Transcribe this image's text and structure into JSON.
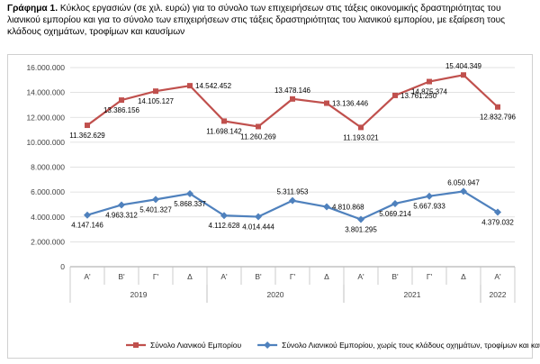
{
  "caption": {
    "label": "Γράφημα 1.",
    "text": "Κύκλος εργασιών (σε χιλ. ευρώ) για το σύνολο των επιχειρήσεων στις τάξεις οικονομικής δραστηριότητας του λιανικού εμπορίου και για το σύνολο των επιχειρήσεων στις τάξεις δραστηριότητας του λιανικού εμπορίου, με εξαίρεση τους κλάδους οχημάτων, τροφίμων και καυσίμων"
  },
  "chart_data": {
    "type": "line",
    "categories": [
      "Α'",
      "Β'",
      "Γ'",
      "Δ",
      "Α'",
      "Β'",
      "Γ'",
      "Δ",
      "Α'",
      "Β'",
      "Γ'",
      "Δ",
      "Α'"
    ],
    "years": [
      {
        "label": "2019",
        "start": 0,
        "end": 3
      },
      {
        "label": "2020",
        "start": 4,
        "end": 7
      },
      {
        "label": "2021",
        "start": 8,
        "end": 11
      },
      {
        "label": "2022",
        "start": 12,
        "end": 12
      }
    ],
    "ylim": [
      0,
      16000000
    ],
    "yticks": [
      0,
      2000000,
      4000000,
      6000000,
      8000000,
      10000000,
      12000000,
      14000000,
      16000000
    ],
    "ytick_labels": [
      "0",
      "2.000.000",
      "4.000.000",
      "6.000.000",
      "8.000.000",
      "10.000.000",
      "12.000.000",
      "14.000.000",
      "16.000.000"
    ],
    "grid": true,
    "legend_position": "bottom",
    "series": [
      {
        "name": "Σύνολο Λιανικού Εμπορίου",
        "color": "#c0504d",
        "marker": "square",
        "values": [
          11362629,
          13386156,
          14105127,
          14542452,
          11698142,
          11260269,
          13478146,
          13136446,
          11193021,
          13761250,
          14875374,
          15404349,
          12832796
        ],
        "labels": [
          "11.362.629",
          "13.386.156",
          "14.105.127",
          "14.542.452",
          "11.698.142",
          "11.260.269",
          "13.478.146",
          "13.136.446",
          "11.193.021",
          "13.761.250",
          "14.875.374",
          "15.404.349",
          "12.832.796"
        ],
        "label_pos": [
          "below",
          "below",
          "below",
          "right",
          "below",
          "below",
          "above",
          "right",
          "below",
          "right",
          "below",
          "above",
          "below"
        ]
      },
      {
        "name": "Σύνολο Λιανικού Εμπορίου, χωρίς τους κλάδους οχημάτων, τροφίμων και καυσίμων",
        "color": "#4f81bd",
        "marker": "diamond",
        "values": [
          4147146,
          4963312,
          5401327,
          5868337,
          4112628,
          4014444,
          5311953,
          4810868,
          3801295,
          5069214,
          5667933,
          6050947,
          4379032
        ],
        "labels": [
          "4.147.146",
          "4.963.312",
          "5.401.327",
          "5.868.337",
          "4.112.628",
          "4.014.444",
          "5.311.953",
          "4.810.868",
          "3.801.295",
          "5.069.214",
          "5.667.933",
          "6.050.947",
          "4.379.032"
        ],
        "label_pos": [
          "below",
          "below",
          "below",
          "below",
          "below",
          "below",
          "above",
          "right",
          "below",
          "below",
          "below",
          "above",
          "below"
        ]
      }
    ]
  }
}
